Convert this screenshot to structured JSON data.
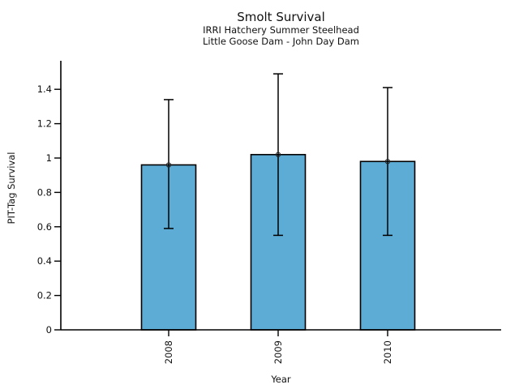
{
  "chart_data": {
    "type": "bar",
    "title": "Smolt Survival",
    "subtitle_lines": [
      "IRRI Hatchery Summer Steelhead",
      "Little Goose Dam - John Day Dam"
    ],
    "xlabel": "Year",
    "ylabel": "PIT-Tag Survival",
    "categories": [
      "2008",
      "2009",
      "2010"
    ],
    "values": [
      0.96,
      1.02,
      0.98
    ],
    "error_low": [
      0.59,
      0.55,
      0.55
    ],
    "error_high": [
      1.34,
      1.49,
      1.41
    ],
    "yticks": [
      0,
      0.2,
      0.4,
      0.6,
      0.8,
      1.0,
      1.2,
      1.4
    ],
    "ytick_labels": [
      "0",
      "0.2",
      "0.4",
      "0.6",
      "0.8",
      "1",
      "1.2",
      "1.4"
    ],
    "ylim": [
      0,
      1.57
    ],
    "grid": false,
    "legend": "none",
    "marker": "open-circle",
    "bar_color": "#5CACD6",
    "bar_edge_color": "#000000",
    "error_color": "#000000",
    "axis_color": "#000000",
    "background": "#FFFFFF"
  }
}
